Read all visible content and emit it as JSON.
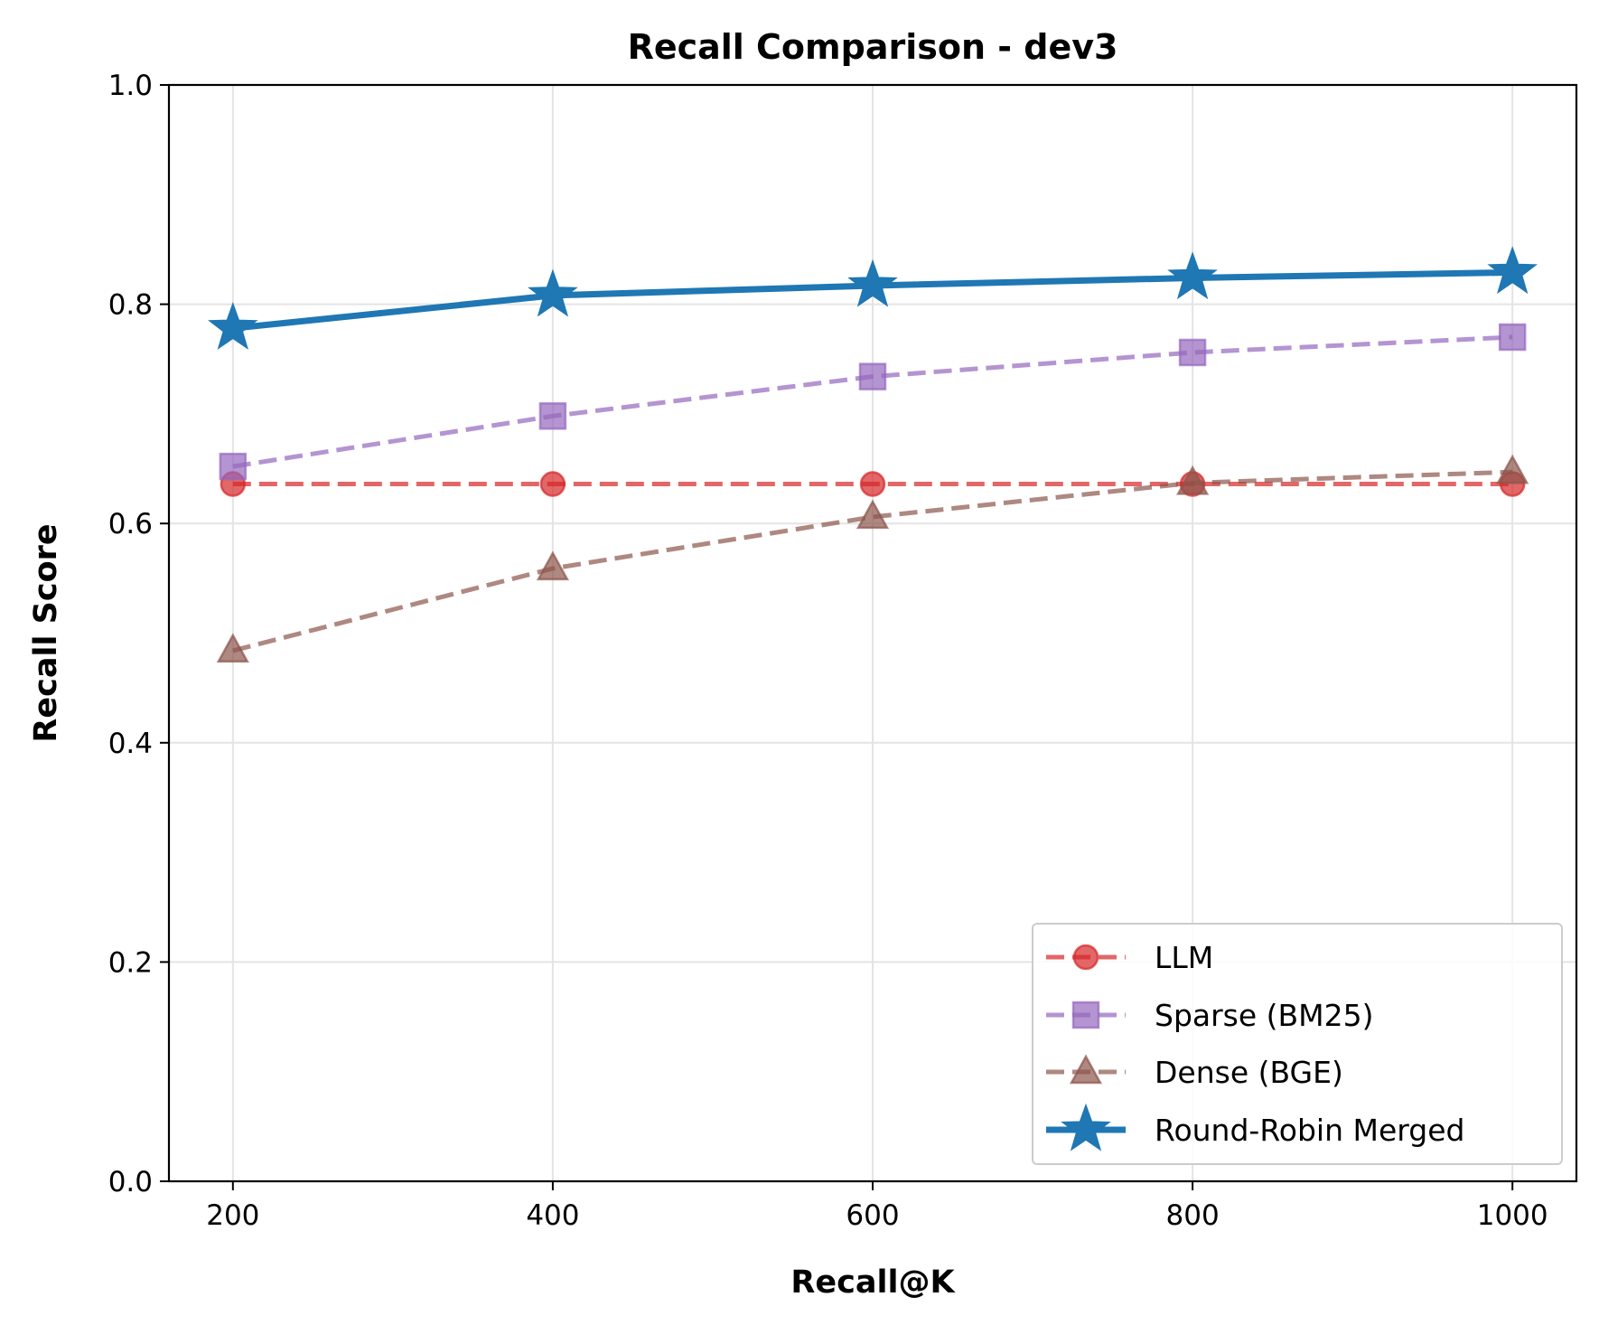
{
  "chart_data": {
    "type": "line",
    "title": "Recall Comparison - dev3",
    "xlabel": "Recall@K",
    "ylabel": "Recall Score",
    "x": [
      200,
      400,
      600,
      800,
      1000
    ],
    "xlim": [
      160,
      1040
    ],
    "ylim": [
      0.0,
      1.0
    ],
    "xticks": [
      "200",
      "400",
      "600",
      "800",
      "1000"
    ],
    "yticks": [
      "0.0",
      "0.2",
      "0.4",
      "0.6",
      "0.8",
      "1.0"
    ],
    "grid": true,
    "legend_position": "lower-right",
    "series": [
      {
        "name": "LLM",
        "values": [
          0.636,
          0.636,
          0.636,
          0.636,
          0.636
        ],
        "color": "#d62728",
        "marker": "circle",
        "linestyle": "dashed"
      },
      {
        "name": "Sparse (BM25)",
        "values": [
          0.652,
          0.698,
          0.734,
          0.756,
          0.77
        ],
        "color": "#9467bd",
        "marker": "square",
        "linestyle": "dashed"
      },
      {
        "name": "Dense (BGE)",
        "values": [
          0.484,
          0.559,
          0.606,
          0.637,
          0.647
        ],
        "color": "#8c564b",
        "marker": "triangle",
        "linestyle": "dashed"
      },
      {
        "name": "Round-Robin Merged",
        "values": [
          0.778,
          0.808,
          0.817,
          0.824,
          0.829
        ],
        "color": "#1f77b4",
        "marker": "star",
        "linestyle": "solid"
      }
    ]
  }
}
